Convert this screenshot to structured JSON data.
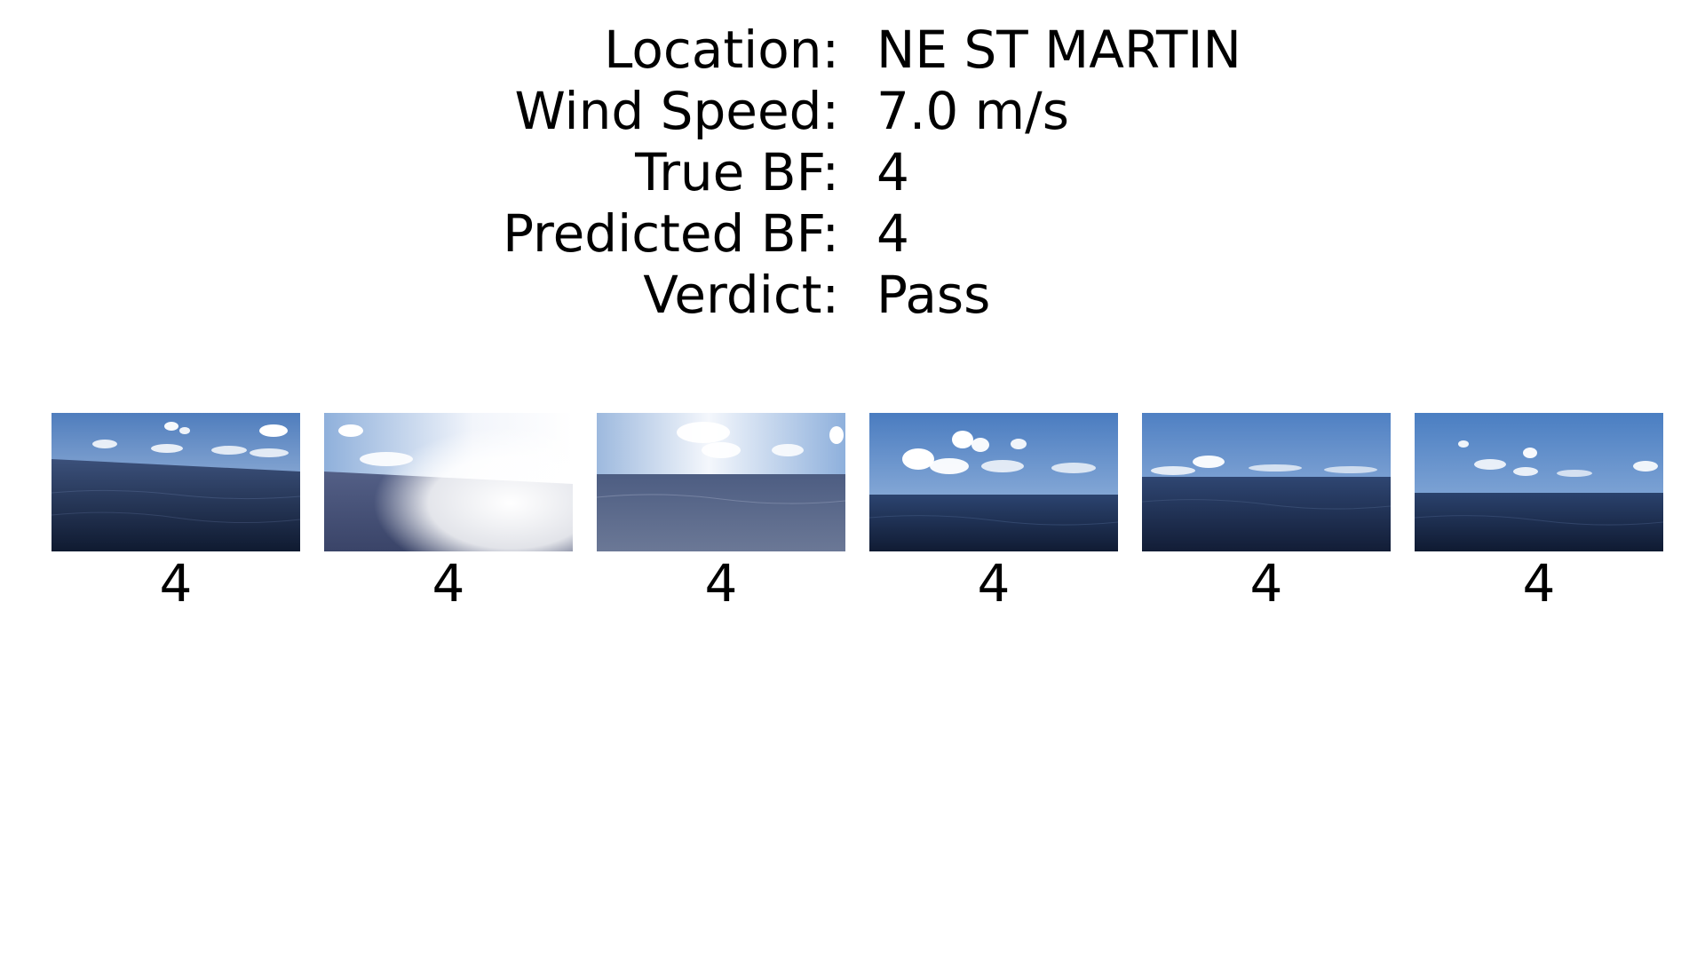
{
  "info": {
    "rows": [
      {
        "label": "Location:",
        "value": "NE ST MARTIN"
      },
      {
        "label": "Wind Speed:",
        "value": "7.0 m/s"
      },
      {
        "label": "True BF:",
        "value": "4"
      },
      {
        "label": "Predicted BF:",
        "value": "4"
      },
      {
        "label": "Verdict:",
        "value": "Pass"
      }
    ]
  },
  "gallery": {
    "images": [
      {
        "caption": "4",
        "icon": "sea-photo-icon"
      },
      {
        "caption": "4",
        "icon": "sea-photo-icon"
      },
      {
        "caption": "4",
        "icon": "sea-photo-icon"
      },
      {
        "caption": "4",
        "icon": "sea-photo-icon"
      },
      {
        "caption": "4",
        "icon": "sea-photo-icon"
      },
      {
        "caption": "4",
        "icon": "sea-photo-icon"
      }
    ]
  },
  "colors": {
    "sky_top": "#5b86c4",
    "sky_bottom": "#c9d8ea",
    "sea_top": "#3a4f78",
    "sea_bottom": "#111c33",
    "cloud": "#ffffff",
    "glare": "#ffffff"
  }
}
